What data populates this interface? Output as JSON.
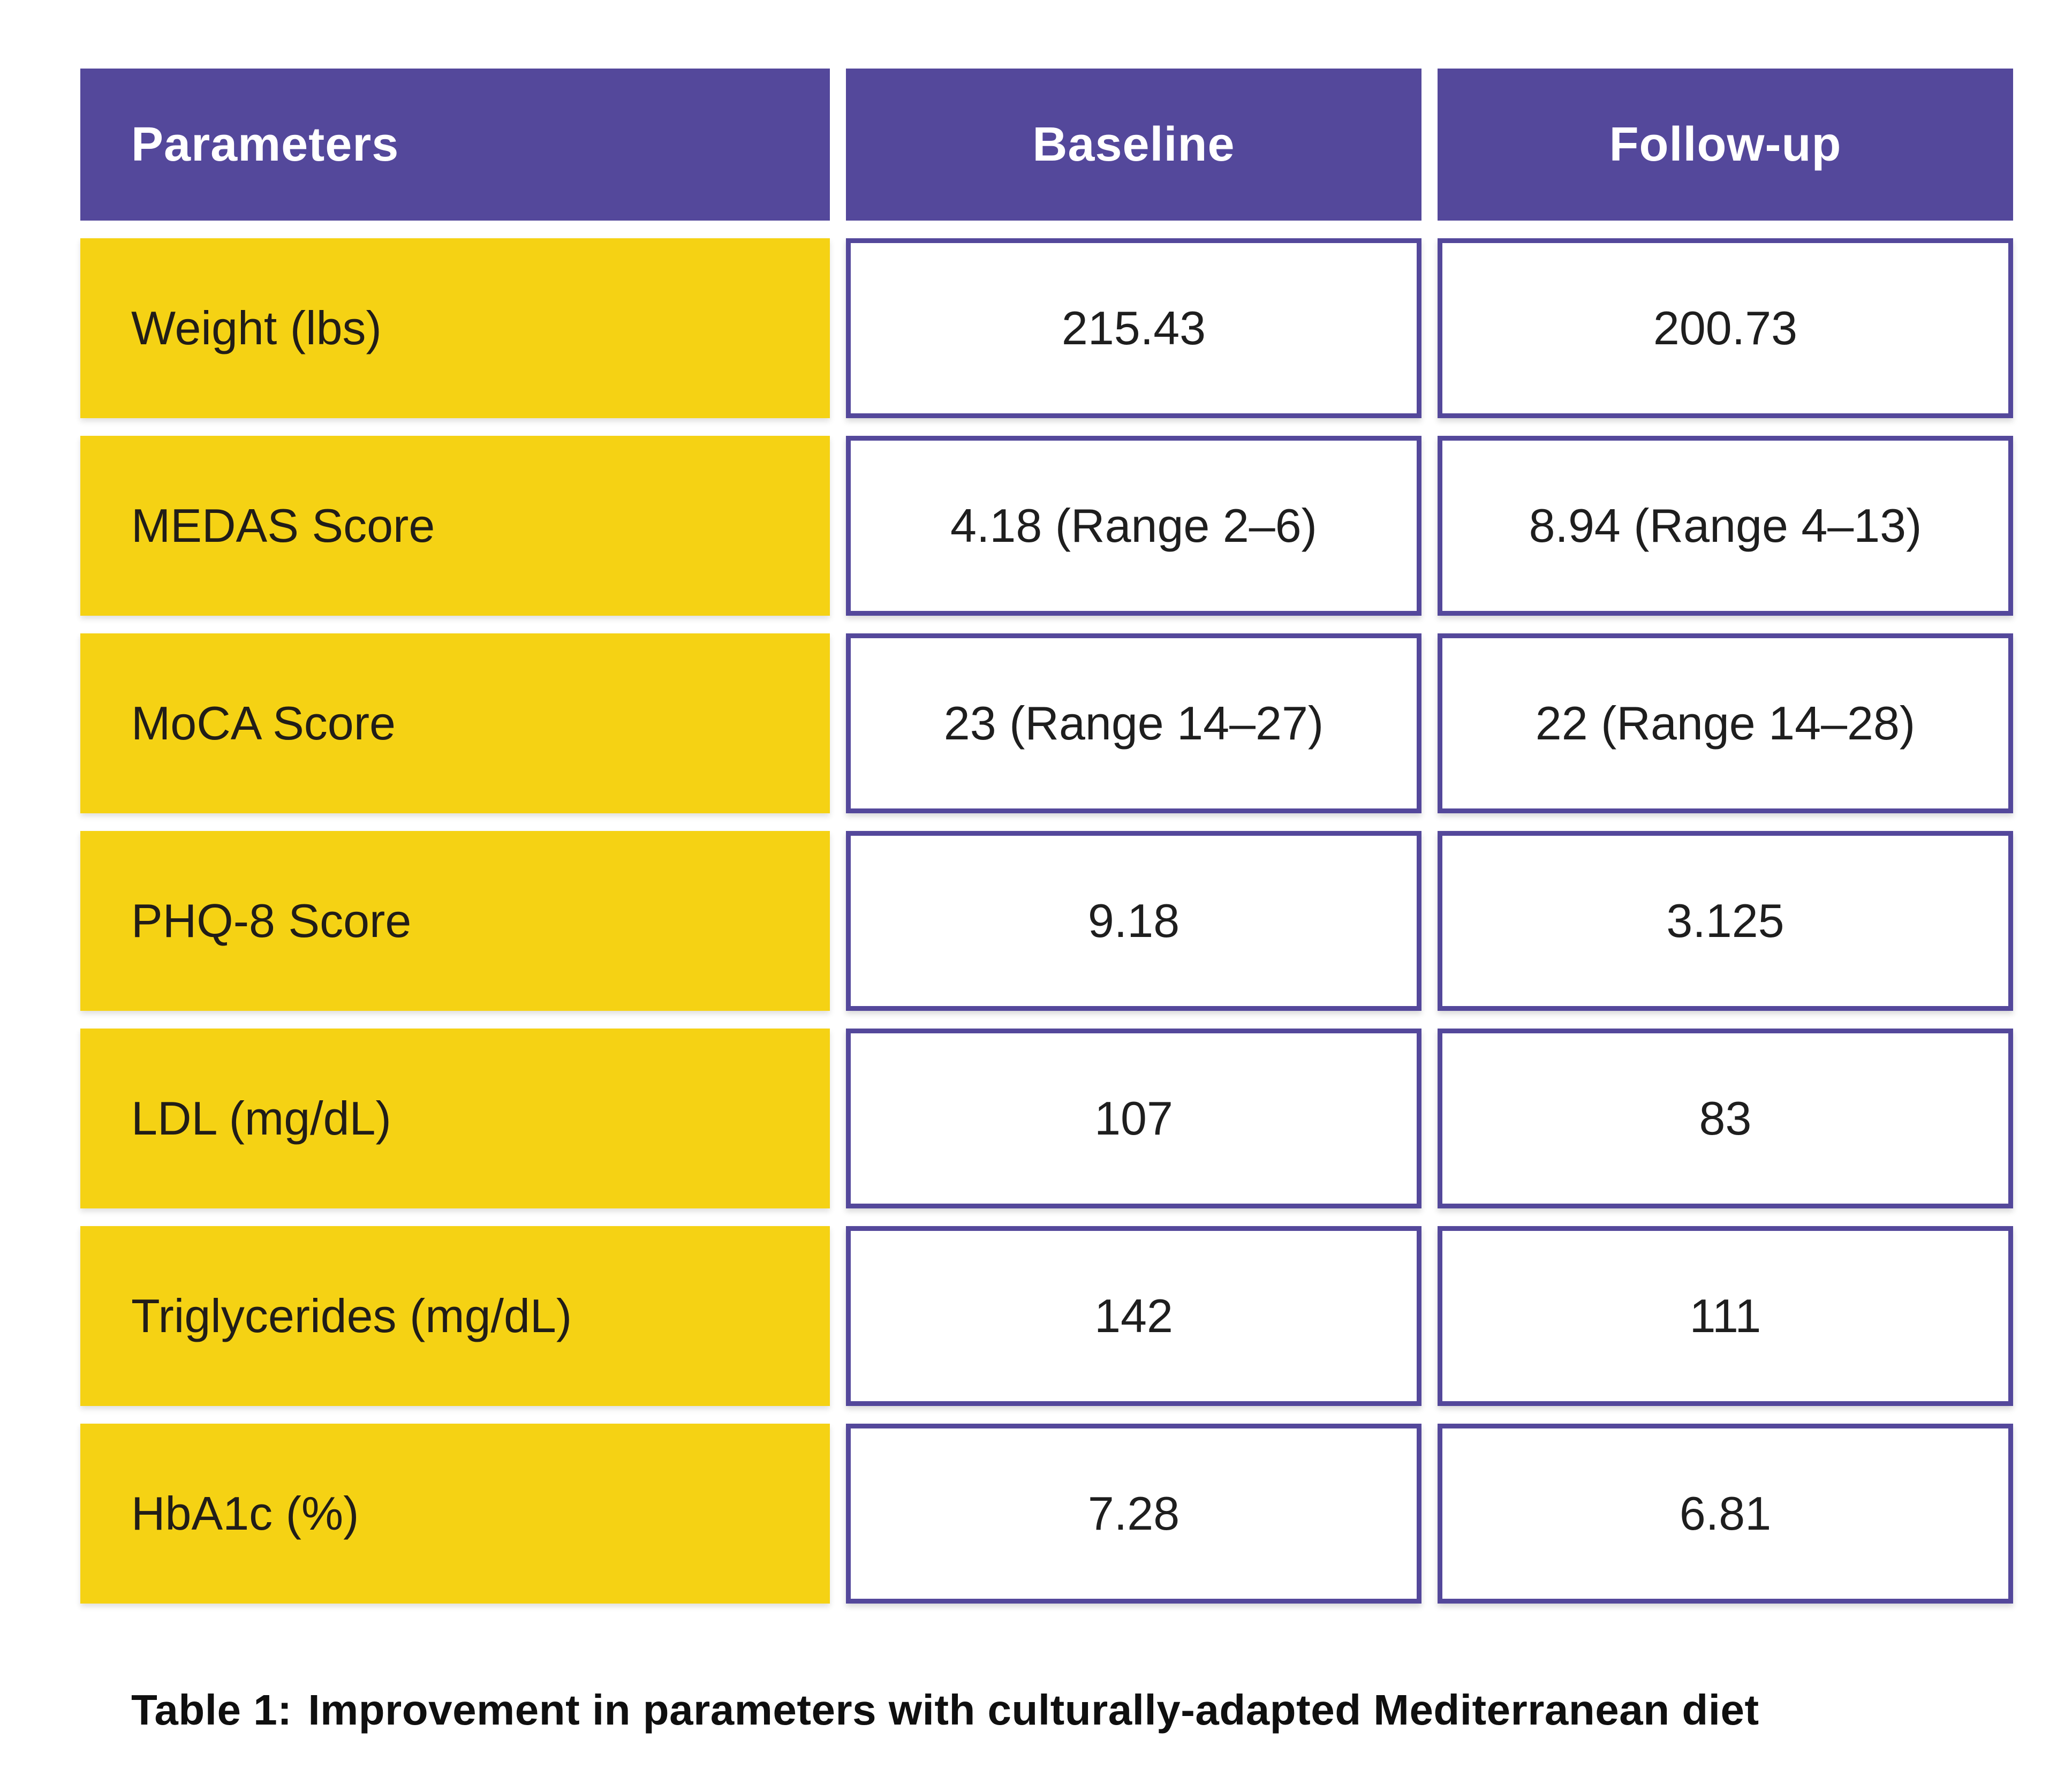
{
  "colors": {
    "header_bg": "#54489b",
    "header_text": "#ffffff",
    "label_bg": "#f5d214",
    "label_text": "#211d18",
    "value_border": "#54489b",
    "value_bg": "#ffffff",
    "value_text": "#1e1e1e",
    "caption_text": "#0f0f0f",
    "page_bg": "#ffffff"
  },
  "table": {
    "headers": {
      "parameters": "Parameters",
      "baseline": "Baseline",
      "followup": "Follow-up"
    },
    "rows": [
      {
        "label": "Weight (lbs)",
        "baseline": "215.43",
        "followup": "200.73"
      },
      {
        "label": "MEDAS Score",
        "baseline": "4.18 (Range 2–6)",
        "followup": "8.94 (Range 4–13)"
      },
      {
        "label": "MoCA Score",
        "baseline": "23 (Range 14–27)",
        "followup": "22 (Range 14–28)"
      },
      {
        "label": "PHQ-8 Score",
        "baseline": "9.18",
        "followup": "3.125"
      },
      {
        "label": "LDL (mg/dL)",
        "baseline": "107",
        "followup": "83"
      },
      {
        "label": "Triglycerides (mg/dL)",
        "baseline": "142",
        "followup": "111"
      },
      {
        "label": "HbA1c (%)",
        "baseline": "7.28",
        "followup": "6.81"
      }
    ]
  },
  "caption": {
    "label": "Table 1:",
    "text": "Improvement in parameters with culturally-adapted Mediterranean diet"
  },
  "chart_data": {
    "type": "table",
    "title": "Table 1: Improvement in parameters with culturally-adapted Mediterranean diet",
    "columns": [
      "Parameters",
      "Baseline",
      "Follow-up"
    ],
    "categories": [
      "Weight (lbs)",
      "MEDAS Score",
      "MoCA Score",
      "PHQ-8 Score",
      "LDL (mg/dL)",
      "Triglycerides (mg/dL)",
      "HbA1c (%)"
    ],
    "series": [
      {
        "name": "Baseline",
        "values": [
          "215.43",
          "4.18 (Range 2–6)",
          "23 (Range 14–27)",
          "9.18",
          "107",
          "142",
          "7.28"
        ]
      },
      {
        "name": "Follow-up",
        "values": [
          "200.73",
          "8.94 (Range 4–13)",
          "22 (Range 14–28)",
          "3.125",
          "83",
          "111",
          "6.81"
        ]
      }
    ]
  }
}
